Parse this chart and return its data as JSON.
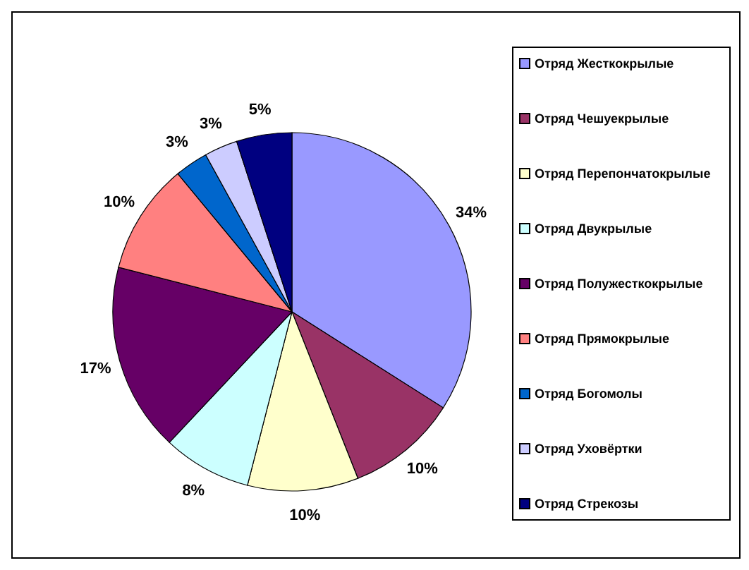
{
  "chart_data": {
    "type": "pie",
    "categories": [
      "Отряд Жесткокрылые",
      "Отряд Чешуекрылые",
      "Отряд Перепончатокрылые",
      "Отряд Двукрылые",
      "Отряд Полужесткокрылые",
      "Отряд Прямокрылые",
      "Отряд Богомолы",
      "Отряд Уховёртки",
      "Отряд Стрекозы"
    ],
    "values": [
      34,
      10,
      10,
      8,
      17,
      10,
      3,
      3,
      5
    ],
    "value_labels": [
      "34%",
      "10%",
      "10%",
      "8%",
      "17%",
      "10%",
      "3%",
      "3%",
      "5%"
    ],
    "colors": [
      "#9999ff",
      "#993366",
      "#ffffcc",
      "#ccffff",
      "#660066",
      "#ff8080",
      "#0066cc",
      "#ccccff",
      "#000080"
    ],
    "legend": "right"
  }
}
